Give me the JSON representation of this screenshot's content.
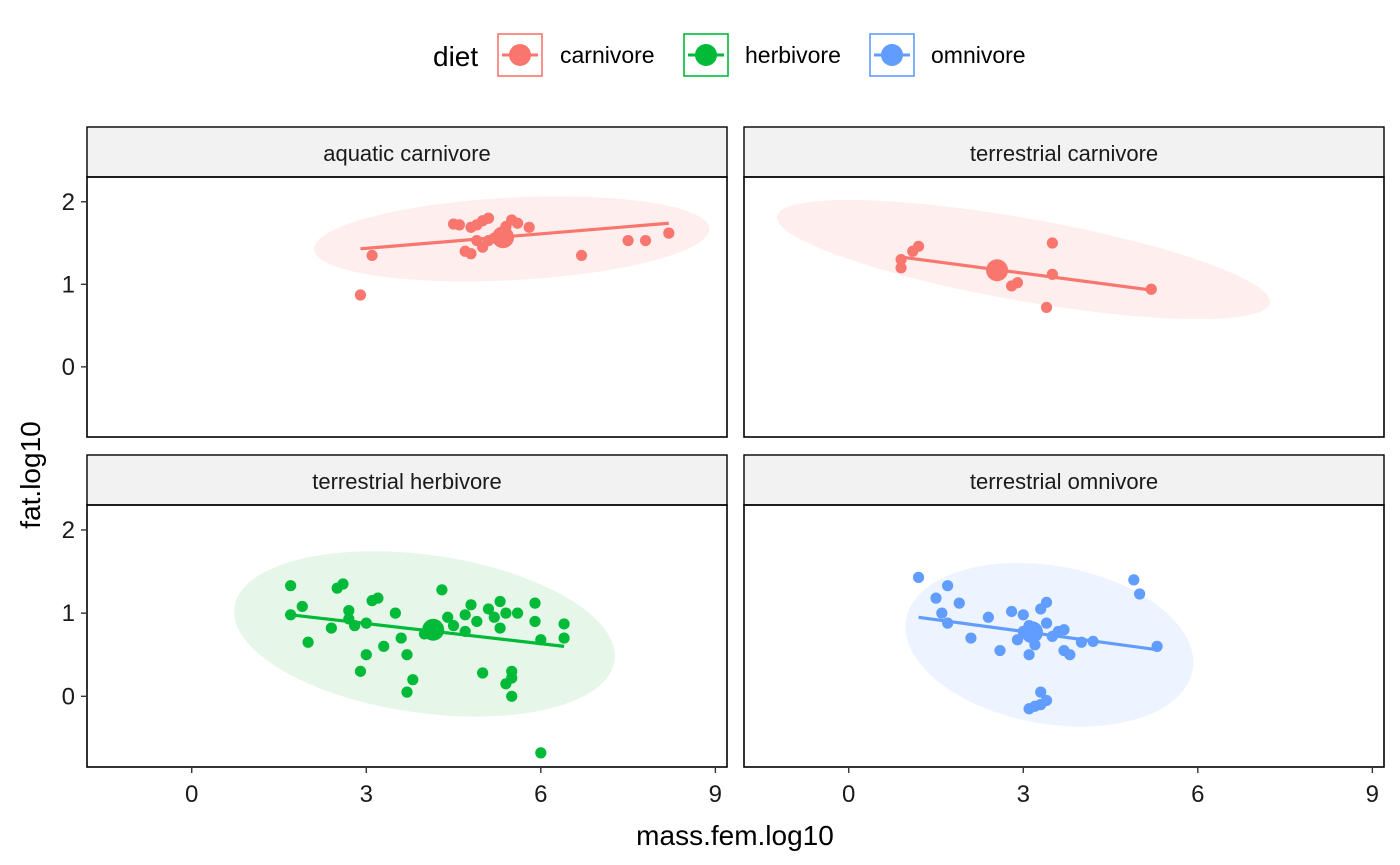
{
  "chart_data": {
    "type": "scatter",
    "xlabel": "mass.fem.log10",
    "ylabel": "fat.log10",
    "xlim": [
      -1.8,
      9.2
    ],
    "ylim": [
      -0.85,
      2.3
    ],
    "xticks": [
      0,
      3,
      6,
      9
    ],
    "yticks": [
      0,
      1,
      2
    ],
    "legend": {
      "title": "diet",
      "position": "top",
      "entries": [
        {
          "label": "carnivore",
          "color": "#F8766D"
        },
        {
          "label": "herbivore",
          "color": "#00BA38"
        },
        {
          "label": "omnivore",
          "color": "#619CFF"
        }
      ]
    },
    "panels": [
      {
        "strip": "aquatic carnivore",
        "diet": "carnivore",
        "color": "#F8766D",
        "fill": "#FEEEED",
        "points": [
          [
            2.9,
            0.87
          ],
          [
            3.1,
            1.35
          ],
          [
            4.5,
            1.73
          ],
          [
            4.6,
            1.72
          ],
          [
            4.8,
            1.69
          ],
          [
            4.9,
            1.72
          ],
          [
            5.0,
            1.77
          ],
          [
            5.1,
            1.8
          ],
          [
            5.4,
            1.7
          ],
          [
            5.5,
            1.78
          ],
          [
            5.6,
            1.74
          ],
          [
            5.8,
            1.69
          ],
          [
            4.7,
            1.4
          ],
          [
            4.8,
            1.37
          ],
          [
            5.0,
            1.45
          ],
          [
            4.9,
            1.53
          ],
          [
            5.1,
            1.53
          ],
          [
            5.2,
            1.56
          ],
          [
            6.7,
            1.35
          ],
          [
            7.5,
            1.53
          ],
          [
            7.8,
            1.53
          ],
          [
            8.2,
            1.62
          ]
        ],
        "centroid": [
          5.35,
          1.57
        ],
        "fit": [
          [
            2.9,
            1.43
          ],
          [
            8.2,
            1.74
          ]
        ],
        "ellipse": {
          "cx": 5.5,
          "cy": 1.55,
          "rx": 3.4,
          "ry": 0.5,
          "angle_deg": -3
        }
      },
      {
        "strip": "terrestrial carnivore",
        "diet": "carnivore",
        "color": "#F8766D",
        "fill": "#FEEEED",
        "points": [
          [
            0.9,
            1.2
          ],
          [
            0.9,
            1.3
          ],
          [
            1.1,
            1.4
          ],
          [
            1.2,
            1.46
          ],
          [
            2.8,
            0.98
          ],
          [
            2.9,
            1.02
          ],
          [
            3.5,
            1.5
          ],
          [
            3.5,
            1.12
          ],
          [
            3.4,
            0.72
          ],
          [
            5.2,
            0.94
          ]
        ],
        "centroid": [
          2.55,
          1.17
        ],
        "fit": [
          [
            0.9,
            1.33
          ],
          [
            5.2,
            0.93
          ]
        ],
        "ellipse": {
          "cx": 3.0,
          "cy": 1.3,
          "rx": 4.3,
          "ry": 0.5,
          "angle_deg": 10
        }
      },
      {
        "strip": "terrestrial herbivore",
        "diet": "herbivore",
        "color": "#00BA38",
        "fill": "#E6F7EA",
        "points": [
          [
            1.7,
            1.33
          ],
          [
            1.7,
            0.98
          ],
          [
            1.9,
            1.08
          ],
          [
            2.0,
            0.65
          ],
          [
            2.4,
            0.82
          ],
          [
            2.5,
            1.3
          ],
          [
            2.6,
            1.35
          ],
          [
            2.7,
            1.03
          ],
          [
            2.7,
            0.93
          ],
          [
            2.8,
            0.85
          ],
          [
            2.9,
            0.3
          ],
          [
            3.0,
            0.5
          ],
          [
            3.0,
            0.88
          ],
          [
            3.1,
            1.15
          ],
          [
            3.2,
            1.18
          ],
          [
            3.3,
            0.6
          ],
          [
            3.5,
            1.0
          ],
          [
            3.6,
            0.7
          ],
          [
            3.7,
            0.5
          ],
          [
            3.8,
            0.2
          ],
          [
            3.7,
            0.05
          ],
          [
            4.0,
            0.75
          ],
          [
            4.2,
            0.82
          ],
          [
            4.3,
            1.28
          ],
          [
            4.4,
            0.95
          ],
          [
            4.5,
            0.85
          ],
          [
            4.7,
            0.78
          ],
          [
            4.7,
            0.98
          ],
          [
            4.8,
            1.1
          ],
          [
            4.9,
            0.9
          ],
          [
            5.0,
            0.28
          ],
          [
            5.1,
            1.05
          ],
          [
            5.2,
            0.95
          ],
          [
            5.3,
            0.82
          ],
          [
            5.3,
            1.14
          ],
          [
            5.4,
            1.0
          ],
          [
            5.5,
            0.3
          ],
          [
            5.5,
            0.22
          ],
          [
            5.4,
            0.15
          ],
          [
            5.5,
            0.0
          ],
          [
            5.6,
            1.0
          ],
          [
            5.9,
            1.12
          ],
          [
            5.9,
            0.9
          ],
          [
            6.0,
            0.68
          ],
          [
            6.4,
            0.87
          ],
          [
            6.4,
            0.7
          ],
          [
            6.0,
            -0.68
          ]
        ],
        "centroid": [
          4.15,
          0.8
        ],
        "fit": [
          [
            1.7,
            0.98
          ],
          [
            6.4,
            0.6
          ]
        ],
        "ellipse": {
          "cx": 4.0,
          "cy": 0.75,
          "rx": 3.3,
          "ry": 0.95,
          "angle_deg": 8
        }
      },
      {
        "strip": "terrestrial omnivore",
        "diet": "omnivore",
        "color": "#619CFF",
        "fill": "#EDF4FF",
        "points": [
          [
            1.2,
            1.43
          ],
          [
            1.5,
            1.18
          ],
          [
            1.6,
            1.0
          ],
          [
            1.7,
            1.33
          ],
          [
            1.7,
            0.88
          ],
          [
            1.9,
            1.12
          ],
          [
            2.1,
            0.7
          ],
          [
            2.4,
            0.95
          ],
          [
            2.6,
            0.55
          ],
          [
            2.8,
            1.02
          ],
          [
            2.9,
            0.68
          ],
          [
            3.0,
            0.98
          ],
          [
            3.0,
            0.78
          ],
          [
            3.1,
            0.85
          ],
          [
            3.1,
            0.5
          ],
          [
            3.2,
            0.62
          ],
          [
            3.3,
            1.05
          ],
          [
            3.4,
            1.13
          ],
          [
            3.4,
            0.88
          ],
          [
            3.5,
            0.72
          ],
          [
            3.6,
            0.78
          ],
          [
            3.7,
            0.55
          ],
          [
            3.7,
            0.8
          ],
          [
            3.8,
            0.5
          ],
          [
            4.0,
            0.65
          ],
          [
            4.2,
            0.66
          ],
          [
            3.1,
            -0.15
          ],
          [
            3.2,
            -0.12
          ],
          [
            3.3,
            -0.1
          ],
          [
            3.4,
            -0.05
          ],
          [
            3.3,
            0.05
          ],
          [
            4.9,
            1.4
          ],
          [
            5.0,
            1.23
          ],
          [
            5.3,
            0.6
          ]
        ],
        "centroid": [
          3.15,
          0.77
        ],
        "fit": [
          [
            1.2,
            0.95
          ],
          [
            5.3,
            0.56
          ]
        ],
        "ellipse": {
          "cx": 3.45,
          "cy": 0.62,
          "rx": 2.5,
          "ry": 0.95,
          "angle_deg": 10
        }
      }
    ]
  }
}
